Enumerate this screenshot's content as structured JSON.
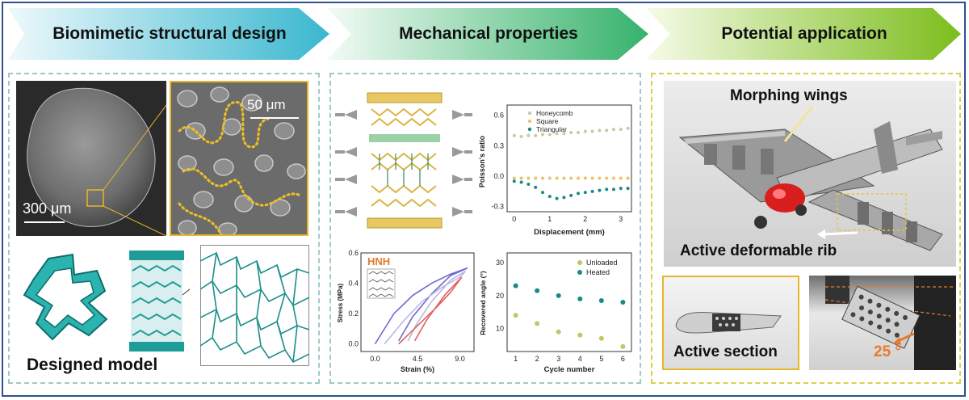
{
  "banners": [
    {
      "title": "Biomimetic structural design",
      "color_from": "#e9f7fb",
      "color_to": "#34b8cf"
    },
    {
      "title": "Mechanical properties",
      "color_from": "#e7f6ea",
      "color_to": "#32b26b"
    },
    {
      "title": "Potential application",
      "color_from": "#f2f9e0",
      "color_to": "#7fbf1f"
    }
  ],
  "design": {
    "sem_scale_large": "300 μm",
    "sem_scale_zoom": "50 μm",
    "model_label": "Designed model"
  },
  "mechanics": {
    "poisson_legend": [
      "Honeycomb",
      "Square",
      "Triangular"
    ],
    "poisson_ylabel": "Poisson's ratio",
    "poisson_xlabel": "Displacement (mm)",
    "poisson_yticks": [
      "0.6",
      "0.3",
      "0.0",
      "-0.3"
    ],
    "poisson_xticks": [
      "0",
      "1",
      "2",
      "3"
    ],
    "stress_tag": "HNH",
    "stress_ylabel": "Stress (MPa)",
    "stress_xlabel": "Strain (%)",
    "stress_yticks": [
      "0.6",
      "0.4",
      "0.2",
      "0.0"
    ],
    "stress_xticks": [
      "0.0",
      "4.5",
      "9.0"
    ],
    "recovery_legend": [
      "Unloaded",
      "Heated"
    ],
    "recovery_ylabel": "Recovered angle (°)",
    "recovery_xlabel": "Cycle number",
    "recovery_yticks": [
      "30",
      "20",
      "10"
    ],
    "recovery_xticks": [
      "1",
      "2",
      "3",
      "4",
      "5",
      "6"
    ]
  },
  "application": {
    "wings_label": "Morphing wings",
    "rib_label": "Active deformable rib",
    "section_label": "Active section",
    "angle_label": "25 °"
  },
  "chart_data": [
    {
      "type": "scatter",
      "xlabel": "Displacement (mm)",
      "ylabel": "Poisson's ratio",
      "xlim": [
        -0.2,
        3.3
      ],
      "ylim": [
        -0.35,
        0.7
      ],
      "series": [
        {
          "name": "Honeycomb",
          "color": "#c9c9a8",
          "x": [
            0,
            0.2,
            0.4,
            0.6,
            0.8,
            1.0,
            1.2,
            1.4,
            1.6,
            1.8,
            2.0,
            2.2,
            2.4,
            2.6,
            2.8,
            3.0,
            3.2
          ],
          "y": [
            0.4,
            0.39,
            0.4,
            0.4,
            0.41,
            0.41,
            0.42,
            0.42,
            0.43,
            0.43,
            0.44,
            0.44,
            0.45,
            0.45,
            0.46,
            0.46,
            0.47
          ]
        },
        {
          "name": "Square",
          "color": "#e8c46a",
          "x": [
            0,
            0.2,
            0.4,
            0.6,
            0.8,
            1.0,
            1.2,
            1.4,
            1.6,
            1.8,
            2.0,
            2.2,
            2.4,
            2.6,
            2.8,
            3.0,
            3.2
          ],
          "y": [
            -0.02,
            -0.02,
            -0.02,
            -0.02,
            -0.02,
            -0.02,
            -0.02,
            -0.02,
            -0.02,
            -0.02,
            -0.02,
            -0.02,
            -0.02,
            -0.02,
            -0.02,
            -0.02,
            -0.02
          ]
        },
        {
          "name": "Triangular",
          "color": "#1a8a80",
          "x": [
            0,
            0.2,
            0.4,
            0.6,
            0.8,
            1.0,
            1.2,
            1.4,
            1.6,
            1.8,
            2.0,
            2.2,
            2.4,
            2.6,
            2.8,
            3.0,
            3.2
          ],
          "y": [
            -0.05,
            -0.06,
            -0.08,
            -0.11,
            -0.16,
            -0.2,
            -0.22,
            -0.21,
            -0.19,
            -0.17,
            -0.16,
            -0.15,
            -0.14,
            -0.13,
            -0.13,
            -0.12,
            -0.12
          ]
        }
      ]
    },
    {
      "type": "line",
      "xlabel": "Strain (%)",
      "ylabel": "Stress (MPa)",
      "xlim": [
        -1.5,
        10.5
      ],
      "ylim": [
        -0.05,
        0.6
      ],
      "series": [
        {
          "color": "#6a6ad0",
          "x": [
            0,
            2,
            4,
            6,
            8,
            9.8,
            9.8,
            8,
            6,
            4,
            2.5
          ],
          "y": [
            0,
            0.2,
            0.32,
            0.4,
            0.46,
            0.5,
            0.5,
            0.45,
            0.33,
            0.18,
            0.02
          ]
        },
        {
          "color": "#b8b8e8",
          "x": [
            1,
            3,
            5,
            7,
            9,
            9.6,
            9.6,
            8,
            6,
            4.5,
            3.5
          ],
          "y": [
            0,
            0.15,
            0.28,
            0.37,
            0.44,
            0.48,
            0.48,
            0.42,
            0.28,
            0.14,
            0.02
          ]
        },
        {
          "color": "#e06060",
          "x": [
            2.5,
            4.5,
            6.5,
            8,
            9.2,
            9.2,
            7.5,
            5.5,
            4.2
          ],
          "y": [
            0,
            0.12,
            0.24,
            0.34,
            0.44,
            0.44,
            0.33,
            0.16,
            0.02
          ]
        }
      ]
    },
    {
      "type": "scatter",
      "xlabel": "Cycle number",
      "ylabel": "Recovered angle (°)",
      "xlim": [
        0.6,
        6.4
      ],
      "ylim": [
        3,
        33
      ],
      "series": [
        {
          "name": "Unloaded",
          "color": "#c7c36a",
          "x": [
            1,
            2,
            3,
            4,
            5,
            6
          ],
          "y": [
            14,
            11.5,
            9,
            8,
            7,
            4.5
          ]
        },
        {
          "name": "Heated",
          "color": "#1a8a80",
          "x": [
            1,
            2,
            3,
            4,
            5,
            6
          ],
          "y": [
            23,
            21.5,
            20,
            19,
            18.5,
            18
          ]
        }
      ]
    }
  ]
}
